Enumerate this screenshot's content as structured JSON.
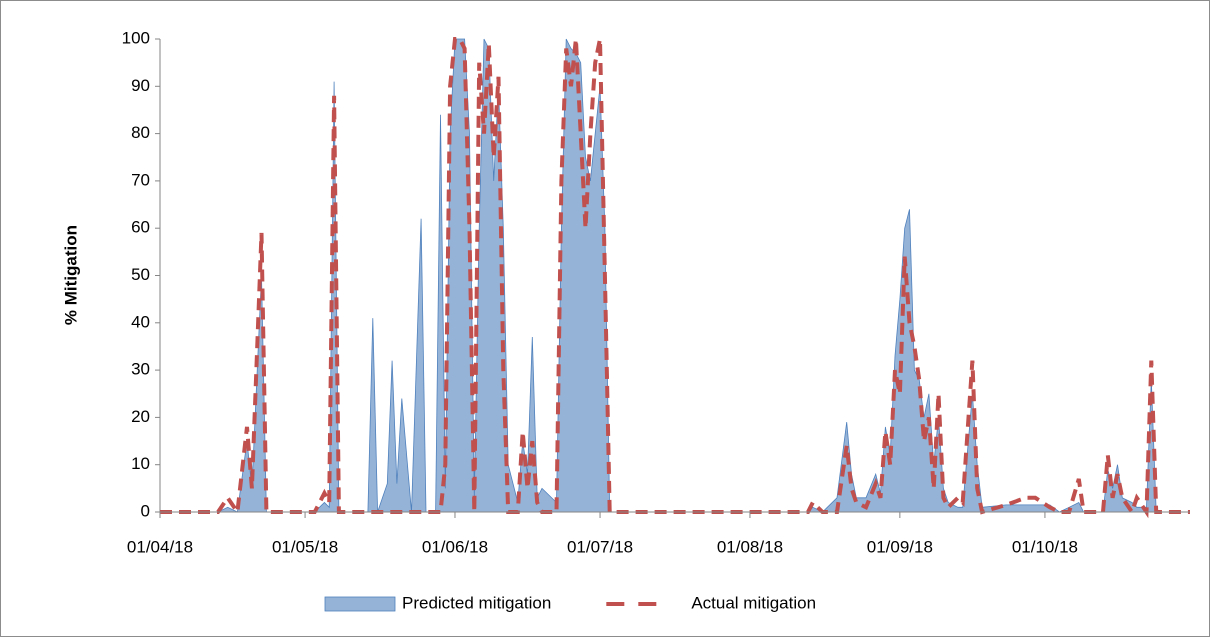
{
  "chart_data": {
    "type": "area-line",
    "y_label": "% Mitigation",
    "x": [
      "01/04/18",
      "13/04/18",
      "15/04/18",
      "17/04/18",
      "19/04/18",
      "20/04/18",
      "22/04/18",
      "23/04/18",
      "03/05/18",
      "05/05/18",
      "06/05/18",
      "07/05/18",
      "08/05/18",
      "14/05/18",
      "15/05/18",
      "16/05/18",
      "18/05/18",
      "19/05/18",
      "20/05/18",
      "21/05/18",
      "23/05/18",
      "25/05/18",
      "26/05/18",
      "28/05/18",
      "29/05/18",
      "30/05/18",
      "31/05/18",
      "01/06/18",
      "02/06/18",
      "03/06/18",
      "04/06/18",
      "05/06/18",
      "06/06/18",
      "07/06/18",
      "08/06/18",
      "09/06/18",
      "10/06/18",
      "11/06/18",
      "12/06/18",
      "14/06/18",
      "15/06/18",
      "16/06/18",
      "17/06/18",
      "18/06/18",
      "19/06/18",
      "22/06/18",
      "23/06/18",
      "24/06/18",
      "25/06/18",
      "26/06/18",
      "27/06/18",
      "28/06/18",
      "29/06/18",
      "30/06/18",
      "01/07/18",
      "02/07/18",
      "03/07/18",
      "13/08/18",
      "14/08/18",
      "16/08/18",
      "19/08/18",
      "21/08/18",
      "22/08/18",
      "23/08/18",
      "25/08/18",
      "27/08/18",
      "28/08/18",
      "29/08/18",
      "30/08/18",
      "31/08/18",
      "01/09/18",
      "02/09/18",
      "03/09/18",
      "04/09/18",
      "05/09/18",
      "06/09/18",
      "07/09/18",
      "08/09/18",
      "09/09/18",
      "10/09/18",
      "11/09/18",
      "13/09/18",
      "14/09/18",
      "16/09/18",
      "17/09/18",
      "18/09/18",
      "23/09/18",
      "27/09/18",
      "29/09/18",
      "02/10/18",
      "04/10/18",
      "06/10/18",
      "08/10/18",
      "09/10/18",
      "13/10/18",
      "14/10/18",
      "15/10/18",
      "16/10/18",
      "17/10/18",
      "19/10/18",
      "20/10/18",
      "22/10/18",
      "23/10/18",
      "24/10/18",
      "31/10/18"
    ],
    "series": [
      {
        "name": "Predicted mitigation",
        "style": "area",
        "color": "#95b3d7",
        "line_color": "#4f81bd",
        "values": [
          0,
          0,
          1,
          0,
          15,
          5,
          50,
          0,
          0,
          2,
          1,
          91,
          0,
          0,
          41,
          0,
          6,
          32,
          6,
          24,
          0,
          62,
          0,
          0,
          84,
          5,
          80,
          100,
          100,
          100,
          80,
          3,
          60,
          100,
          98,
          70,
          90,
          60,
          10,
          2,
          15,
          8,
          37,
          3,
          5,
          2,
          60,
          100,
          98,
          97,
          95,
          75,
          70,
          80,
          90,
          60,
          0,
          0,
          1,
          0,
          3,
          19,
          8,
          3,
          3,
          8,
          4,
          18,
          12,
          33,
          45,
          60,
          64,
          30,
          28,
          20,
          25,
          10,
          20,
          5,
          2,
          1,
          1,
          25,
          10,
          1,
          1.5,
          1.5,
          1.5,
          1.5,
          0,
          1,
          2,
          0,
          0,
          9,
          5,
          10,
          3,
          2,
          1,
          1,
          28,
          0,
          0
        ]
      },
      {
        "name": "Actual mitigation",
        "style": "dashed",
        "color": "#c0504d",
        "values": [
          0,
          0,
          3,
          0,
          18,
          5,
          59,
          0,
          0,
          4,
          2,
          88,
          0,
          0,
          0,
          0,
          0,
          0,
          0,
          0,
          0,
          0,
          0,
          0,
          0,
          10,
          90,
          100,
          100,
          98,
          60,
          0,
          95,
          80,
          99,
          75,
          92,
          30,
          0,
          0,
          17,
          5,
          15,
          2,
          0,
          0,
          70,
          98,
          90,
          100,
          80,
          60,
          80,
          95,
          100,
          50,
          0,
          0,
          2,
          0,
          0,
          14,
          5,
          2,
          1,
          6,
          3,
          17,
          10,
          30,
          25,
          54,
          40,
          35,
          28,
          15,
          20,
          5,
          25,
          3,
          1,
          3,
          2,
          32,
          5,
          0,
          1.5,
          3,
          3,
          1,
          0,
          0,
          7,
          0,
          0,
          12,
          3,
          8,
          3,
          0,
          3,
          0,
          32,
          0,
          0
        ]
      }
    ],
    "xlim": [
      "01/04/18",
      "31/10/18"
    ],
    "xticks": [
      "01/04/18",
      "01/05/18",
      "01/06/18",
      "01/07/18",
      "01/08/18",
      "01/09/18",
      "01/10/18"
    ],
    "ylim": [
      0,
      100
    ],
    "yticks": [
      0,
      10,
      20,
      30,
      40,
      50,
      60,
      70,
      80,
      90,
      100
    ],
    "legend": "bottom"
  }
}
